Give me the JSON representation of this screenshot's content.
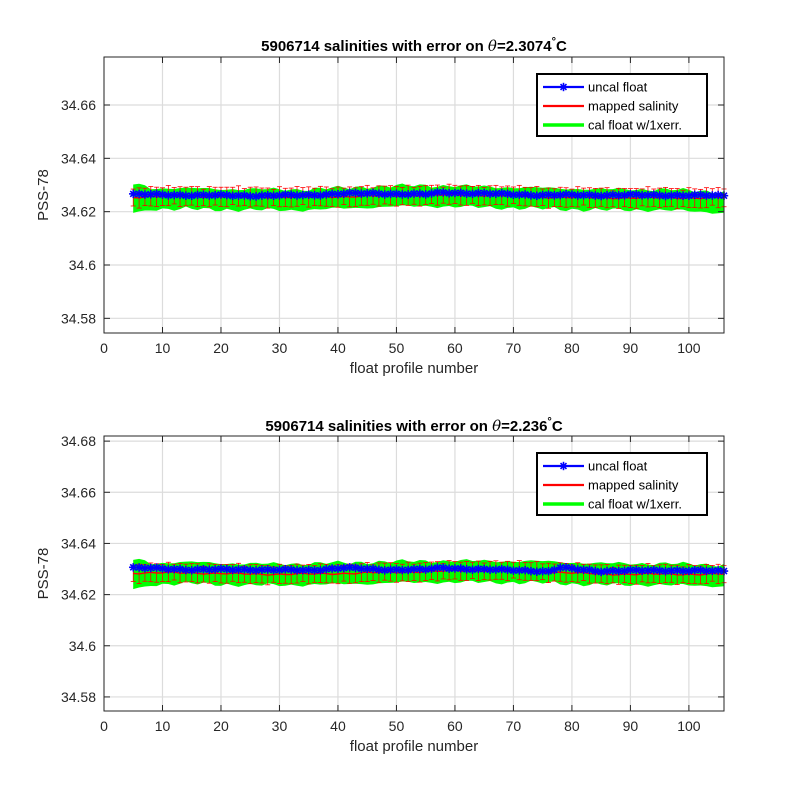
{
  "chart_data": [
    {
      "type": "line",
      "title": "5906714 salinities with error on θ=2.3074°C",
      "title_parts": {
        "prefix": "5906714 salinities with error on ",
        "theta": "θ",
        "value": "=2.3074",
        "degree": "°",
        "unit": "C"
      },
      "xlabel": "float profile number",
      "ylabel": "PSS-78",
      "xlim": [
        0,
        106
      ],
      "ylim": [
        34.5745,
        34.678
      ],
      "xticks": [
        0,
        10,
        20,
        30,
        40,
        50,
        60,
        70,
        80,
        90,
        100
      ],
      "xtick_labels": [
        "0",
        "10",
        "20",
        "30",
        "40",
        "50",
        "60",
        "70",
        "80",
        "90",
        "100"
      ],
      "yticks": [
        34.58,
        34.6,
        34.62,
        34.64,
        34.66
      ],
      "ytick_labels": [
        "34.58",
        "34.6",
        "34.62",
        "34.64",
        "34.66"
      ],
      "grid": true,
      "legend_position": "top-right",
      "legend": [
        "uncal float",
        "mapped salinity",
        "cal float w/1xerr."
      ],
      "x_range": [
        5,
        106
      ],
      "series": [
        {
          "name": "uncal float",
          "color": "#0000ff",
          "marker": "asterisk",
          "key_x": [
            5,
            15,
            25,
            35,
            41,
            47,
            55,
            58,
            65,
            75,
            85,
            95,
            106
          ],
          "key_y": [
            34.6265,
            34.6262,
            34.626,
            34.6262,
            34.6268,
            34.6268,
            34.6265,
            34.6272,
            34.6268,
            34.6262,
            34.6262,
            34.6262,
            34.626
          ]
        },
        {
          "name": "mapped salinity",
          "color": "#ff0000",
          "errorbars": true,
          "key_x": [
            5,
            15,
            25,
            35,
            45,
            55,
            65,
            75,
            85,
            95,
            106
          ],
          "key_y": [
            34.6255,
            34.6258,
            34.6255,
            34.6255,
            34.6258,
            34.6262,
            34.6262,
            34.6255,
            34.6252,
            34.6252,
            34.6252
          ],
          "error": 0.003
        },
        {
          "name": "cal float w/1xerr.",
          "color": "#00ff00",
          "band": true,
          "key_x": [
            5,
            15,
            25,
            35,
            45,
            55,
            65,
            75,
            85,
            95,
            106
          ],
          "key_y": [
            34.625,
            34.6248,
            34.6245,
            34.6245,
            34.6255,
            34.626,
            34.6255,
            34.625,
            34.6245,
            34.6245,
            34.6235
          ],
          "error": 0.0035
        }
      ]
    },
    {
      "type": "line",
      "title": "5906714 salinities with error on θ=2.236°C",
      "title_parts": {
        "prefix": "5906714 salinities with error on ",
        "theta": "θ",
        "value": "=2.236",
        "degree": "°",
        "unit": "C"
      },
      "xlabel": "float profile number",
      "ylabel": "PSS-78",
      "xlim": [
        0,
        106
      ],
      "ylim": [
        34.5745,
        34.682
      ],
      "xticks": [
        0,
        10,
        20,
        30,
        40,
        50,
        60,
        70,
        80,
        90,
        100
      ],
      "xtick_labels": [
        "0",
        "10",
        "20",
        "30",
        "40",
        "50",
        "60",
        "70",
        "80",
        "90",
        "100"
      ],
      "yticks": [
        34.58,
        34.6,
        34.62,
        34.64,
        34.66,
        34.68
      ],
      "ytick_labels": [
        "34.58",
        "34.6",
        "34.62",
        "34.64",
        "34.66",
        "34.68"
      ],
      "grid": true,
      "legend_position": "top-right",
      "legend": [
        "uncal float",
        "mapped salinity",
        "cal float w/1xerr."
      ],
      "x_range": [
        5,
        106
      ],
      "series": [
        {
          "name": "uncal float",
          "color": "#0000ff",
          "marker": "asterisk",
          "key_x": [
            5,
            15,
            25,
            35,
            41,
            47,
            55,
            58,
            65,
            72,
            76,
            78,
            85,
            95,
            106
          ],
          "key_y": [
            34.6305,
            34.6298,
            34.6298,
            34.6295,
            34.6305,
            34.6298,
            34.6298,
            34.6305,
            34.6298,
            34.6295,
            34.629,
            34.6305,
            34.6292,
            34.6295,
            34.6292
          ]
        },
        {
          "name": "mapped salinity",
          "color": "#ff0000",
          "errorbars": true,
          "key_x": [
            5,
            15,
            25,
            35,
            45,
            55,
            65,
            75,
            85,
            95,
            106
          ],
          "key_y": [
            34.6285,
            34.6285,
            34.628,
            34.628,
            34.6285,
            34.629,
            34.6295,
            34.629,
            34.628,
            34.628,
            34.628
          ],
          "error": 0.003
        },
        {
          "name": "cal float w/1xerr.",
          "color": "#00ff00",
          "band": true,
          "key_x": [
            5,
            15,
            25,
            35,
            45,
            55,
            65,
            75,
            85,
            95,
            106
          ],
          "key_y": [
            34.628,
            34.6285,
            34.6278,
            34.628,
            34.6285,
            34.629,
            34.629,
            34.6288,
            34.628,
            34.628,
            34.6275
          ],
          "error": 0.0038
        }
      ]
    }
  ]
}
